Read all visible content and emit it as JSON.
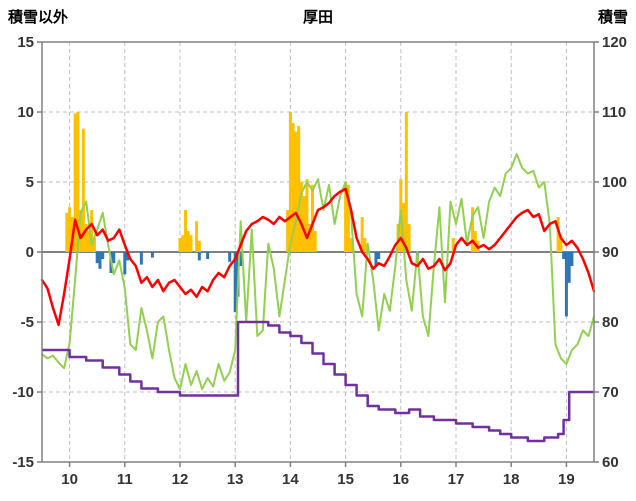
{
  "header": {
    "left_axis_title": "積雪以外",
    "title": "厚田",
    "right_axis_title": "積雪"
  },
  "chart_data": {
    "type": "line",
    "title": "厚田",
    "left_axis_label": "積雪以外",
    "right_axis_label": "積雪",
    "x_range": [
      9.5,
      19.5
    ],
    "left_ylim": [
      -15,
      15
    ],
    "right_ylim": [
      60,
      120
    ],
    "x_ticks": [
      10,
      11,
      12,
      13,
      14,
      15,
      16,
      17,
      18,
      19
    ],
    "left_ticks": [
      15,
      10,
      5,
      0,
      -5,
      -10,
      -15
    ],
    "right_ticks": [
      120,
      110,
      100,
      90,
      80,
      70,
      60
    ],
    "grid": "dashed",
    "legend": "none",
    "colors": {
      "bar_positive": "#FFC000",
      "bar_negative": "#2E75B6",
      "line_green": "#92D050",
      "line_red": "#FF0000",
      "line_purple": "#7030A0",
      "grid": "#BFBFBF",
      "axis": "#808080"
    },
    "series": [
      {
        "name": "orange-bars",
        "type": "bar",
        "axis": "left",
        "color_key": "bar_positive",
        "points": [
          [
            9.95,
            2.8
          ],
          [
            10.0,
            3.2
          ],
          [
            10.05,
            2.5
          ],
          [
            10.1,
            9.9
          ],
          [
            10.15,
            10.0
          ],
          [
            10.2,
            3.0
          ],
          [
            10.25,
            8.8
          ],
          [
            10.3,
            2.0
          ],
          [
            10.35,
            1.5
          ],
          [
            10.4,
            3.0
          ],
          [
            10.45,
            1.0
          ],
          [
            12.0,
            1.0
          ],
          [
            12.05,
            1.2
          ],
          [
            12.1,
            3.0
          ],
          [
            12.15,
            1.5
          ],
          [
            12.2,
            1.2
          ],
          [
            12.3,
            2.2
          ],
          [
            12.35,
            0.8
          ],
          [
            13.95,
            3.0
          ],
          [
            14.0,
            10.0
          ],
          [
            14.05,
            9.2
          ],
          [
            14.1,
            8.6
          ],
          [
            14.15,
            9.0
          ],
          [
            14.2,
            5.0
          ],
          [
            14.25,
            4.0
          ],
          [
            14.3,
            5.2
          ],
          [
            14.35,
            2.0
          ],
          [
            14.4,
            4.8
          ],
          [
            14.45,
            1.5
          ],
          [
            15.0,
            5.0
          ],
          [
            15.05,
            4.8
          ],
          [
            15.1,
            1.0
          ],
          [
            15.3,
            2.5
          ],
          [
            15.35,
            1.0
          ],
          [
            15.95,
            2.0
          ],
          [
            16.0,
            5.2
          ],
          [
            16.05,
            3.5
          ],
          [
            16.1,
            10.0
          ],
          [
            16.15,
            2.0
          ],
          [
            16.95,
            1.0
          ],
          [
            17.3,
            3.2
          ],
          [
            17.35,
            1.5
          ],
          [
            17.4,
            0.8
          ],
          [
            18.85,
            2.5
          ],
          [
            18.9,
            1.2
          ]
        ]
      },
      {
        "name": "blue-bars",
        "type": "bar",
        "axis": "left",
        "color_key": "bar_negative",
        "points": [
          [
            10.5,
            -0.8
          ],
          [
            10.55,
            -1.2
          ],
          [
            10.6,
            -0.5
          ],
          [
            10.75,
            -1.5
          ],
          [
            10.8,
            -0.8
          ],
          [
            11.0,
            -1.6
          ],
          [
            11.05,
            -0.6
          ],
          [
            11.3,
            -0.9
          ],
          [
            11.5,
            -0.4
          ],
          [
            12.35,
            -0.6
          ],
          [
            12.5,
            -0.5
          ],
          [
            12.9,
            -0.7
          ],
          [
            13.0,
            -4.3
          ],
          [
            13.05,
            -3.2
          ],
          [
            13.1,
            -1.0
          ],
          [
            15.55,
            -1.0
          ],
          [
            15.6,
            -0.5
          ],
          [
            16.3,
            -0.6
          ],
          [
            18.95,
            -0.5
          ],
          [
            19.0,
            -4.6
          ],
          [
            19.05,
            -2.2
          ],
          [
            19.1,
            -1.0
          ]
        ]
      },
      {
        "name": "green-line",
        "type": "line",
        "axis": "left",
        "color_key": "line_green",
        "width": 2,
        "x0": 9.5,
        "dx": 0.1,
        "values": [
          -7.3,
          -7.6,
          -7.4,
          -7.9,
          -8.3,
          -6.5,
          -2,
          2.8,
          3.6,
          0.5,
          1.6,
          2.8,
          0.5,
          -1.6,
          -0.6,
          -2.6,
          -6.6,
          -7,
          -4,
          -5.6,
          -7.6,
          -5,
          -4.6,
          -7,
          -9,
          -9.8,
          -8,
          -9.5,
          -8.5,
          -9.8,
          -9,
          -9.6,
          -8,
          -9.2,
          -8.6,
          -7,
          2.2,
          -5,
          1.6,
          -6,
          -5.6,
          0.6,
          -1.2,
          -4.6,
          -2,
          0.6,
          2.2,
          4.2,
          5,
          4.4,
          5.2,
          3,
          4.8,
          2,
          4,
          5,
          2.6,
          -3,
          -4.6,
          0.6,
          -2,
          -5.6,
          -3,
          -4.2,
          -1,
          3,
          -2,
          -4.2,
          0,
          -4.6,
          -6,
          -1,
          3.2,
          -3.6,
          3.6,
          2,
          3.8,
          0.6,
          2.6,
          3.2,
          1,
          3.6,
          4.6,
          4,
          5.6,
          6,
          7,
          6,
          5.6,
          5.8,
          4.6,
          5,
          2,
          -6.6,
          -7.6,
          -8,
          -7,
          -6.6,
          -5.6,
          -6,
          -4.6
        ]
      },
      {
        "name": "red-line",
        "type": "line",
        "axis": "left",
        "color_key": "line_red",
        "width": 2.5,
        "x0": 9.5,
        "dx": 0.1,
        "values": [
          -2,
          -2.6,
          -4,
          -5.2,
          -3,
          -0.5,
          2.3,
          1,
          1.6,
          2,
          1.2,
          1.6,
          0.8,
          1,
          1.6,
          0.5,
          -0.5,
          -1,
          -2.2,
          -1.8,
          -2.5,
          -2,
          -2.8,
          -2.2,
          -2,
          -2.5,
          -3,
          -2.7,
          -3.2,
          -2.5,
          -2.8,
          -2,
          -1.5,
          -1.8,
          -1,
          -0.5,
          0.5,
          1.5,
          2,
          2.2,
          2.5,
          2.3,
          2,
          2.5,
          2.2,
          2.5,
          2.8,
          2,
          1,
          2,
          3,
          3.2,
          3.5,
          4,
          4.3,
          4.5,
          3,
          1,
          0,
          -0.5,
          -1.2,
          -0.8,
          -1,
          -0.3,
          0.5,
          1,
          0.3,
          -0.8,
          -1,
          -0.5,
          -1.2,
          -1,
          -0.5,
          -1.3,
          -0.8,
          0.5,
          1,
          0.5,
          0.8,
          0.3,
          0.5,
          0.2,
          0.5,
          1,
          1.5,
          2,
          2.5,
          2.8,
          3,
          2.5,
          2.7,
          1.5,
          2,
          2.2,
          1,
          0.5,
          0.8,
          0.3,
          -0.5,
          -1.5,
          -2.8
        ]
      },
      {
        "name": "purple-snow-depth-line",
        "type": "step",
        "axis": "right",
        "color_key": "line_purple",
        "width": 2.5,
        "points": [
          [
            9.5,
            76
          ],
          [
            10.0,
            75
          ],
          [
            10.3,
            74.5
          ],
          [
            10.6,
            73.5
          ],
          [
            10.9,
            72.5
          ],
          [
            11.1,
            71.5
          ],
          [
            11.3,
            70.5
          ],
          [
            11.6,
            70
          ],
          [
            12.0,
            69.5
          ],
          [
            13.05,
            80
          ],
          [
            13.6,
            79.5
          ],
          [
            13.8,
            78.5
          ],
          [
            14.0,
            78
          ],
          [
            14.2,
            77
          ],
          [
            14.4,
            75.5
          ],
          [
            14.6,
            74
          ],
          [
            14.8,
            72.5
          ],
          [
            15.0,
            71
          ],
          [
            15.2,
            69.5
          ],
          [
            15.4,
            68
          ],
          [
            15.6,
            67.5
          ],
          [
            15.9,
            67
          ],
          [
            16.15,
            67.5
          ],
          [
            16.35,
            66.5
          ],
          [
            16.6,
            66
          ],
          [
            17.0,
            65.5
          ],
          [
            17.3,
            65
          ],
          [
            17.6,
            64.5
          ],
          [
            17.8,
            64
          ],
          [
            18.0,
            63.5
          ],
          [
            18.3,
            63
          ],
          [
            18.6,
            63.5
          ],
          [
            18.85,
            64
          ],
          [
            18.95,
            66
          ],
          [
            19.05,
            70
          ],
          [
            19.5,
            70
          ]
        ]
      }
    ]
  }
}
